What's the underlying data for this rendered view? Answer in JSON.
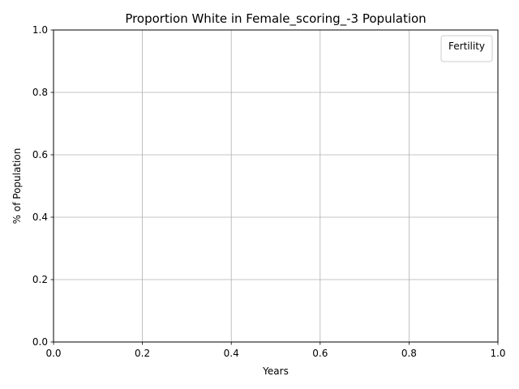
{
  "chart_data": {
    "type": "line",
    "title": "Proportion White in Female_scoring_-3 Population",
    "xlabel": "Years",
    "ylabel": "% of Population",
    "xlim": [
      0.0,
      1.0
    ],
    "ylim": [
      0.0,
      1.0
    ],
    "x_ticks": [
      0.0,
      0.2,
      0.4,
      0.6,
      0.8,
      1.0
    ],
    "y_ticks": [
      0.0,
      0.2,
      0.4,
      0.6,
      0.8,
      1.0
    ],
    "x_tick_labels": [
      "0.0",
      "0.2",
      "0.4",
      "0.6",
      "0.8",
      "1.0"
    ],
    "y_tick_labels": [
      "0.0",
      "0.2",
      "0.4",
      "0.6",
      "0.8",
      "1.0"
    ],
    "grid": true,
    "legend": {
      "title": "Fertility",
      "placement": "top-right",
      "entries": []
    },
    "series": []
  }
}
